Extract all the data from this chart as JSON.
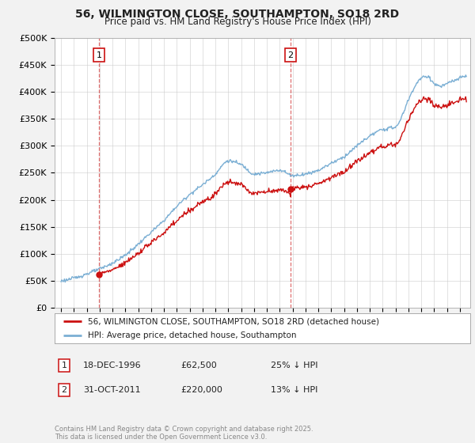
{
  "title1": "56, WILMINGTON CLOSE, SOUTHAMPTON, SO18 2RD",
  "title2": "Price paid vs. HM Land Registry's House Price Index (HPI)",
  "ylim": [
    0,
    500000
  ],
  "yticks": [
    0,
    50000,
    100000,
    150000,
    200000,
    250000,
    300000,
    350000,
    400000,
    450000,
    500000
  ],
  "ytick_labels": [
    "£0",
    "£50K",
    "£100K",
    "£150K",
    "£200K",
    "£250K",
    "£300K",
    "£350K",
    "£400K",
    "£450K",
    "£500K"
  ],
  "hpi_color": "#7bafd4",
  "property_color": "#cc1111",
  "background_color": "#f2f2f2",
  "plot_bg_color": "#ffffff",
  "purchase1_date": 1996.96,
  "purchase1_price": 62500,
  "purchase2_date": 2011.83,
  "purchase2_price": 220000,
  "legend_property": "56, WILMINGTON CLOSE, SOUTHAMPTON, SO18 2RD (detached house)",
  "legend_hpi": "HPI: Average price, detached house, Southampton",
  "table_row1_num": "1",
  "table_row1_date": "18-DEC-1996",
  "table_row1_price": "£62,500",
  "table_row1_hpi": "25% ↓ HPI",
  "table_row2_num": "2",
  "table_row2_date": "31-OCT-2011",
  "table_row2_price": "£220,000",
  "table_row2_hpi": "13% ↓ HPI",
  "copyright": "Contains HM Land Registry data © Crown copyright and database right 2025.\nThis data is licensed under the Open Government Licence v3.0.",
  "xmin": 1993.5,
  "xmax": 2025.8,
  "xtick_start": 1994,
  "xtick_end": 2025
}
